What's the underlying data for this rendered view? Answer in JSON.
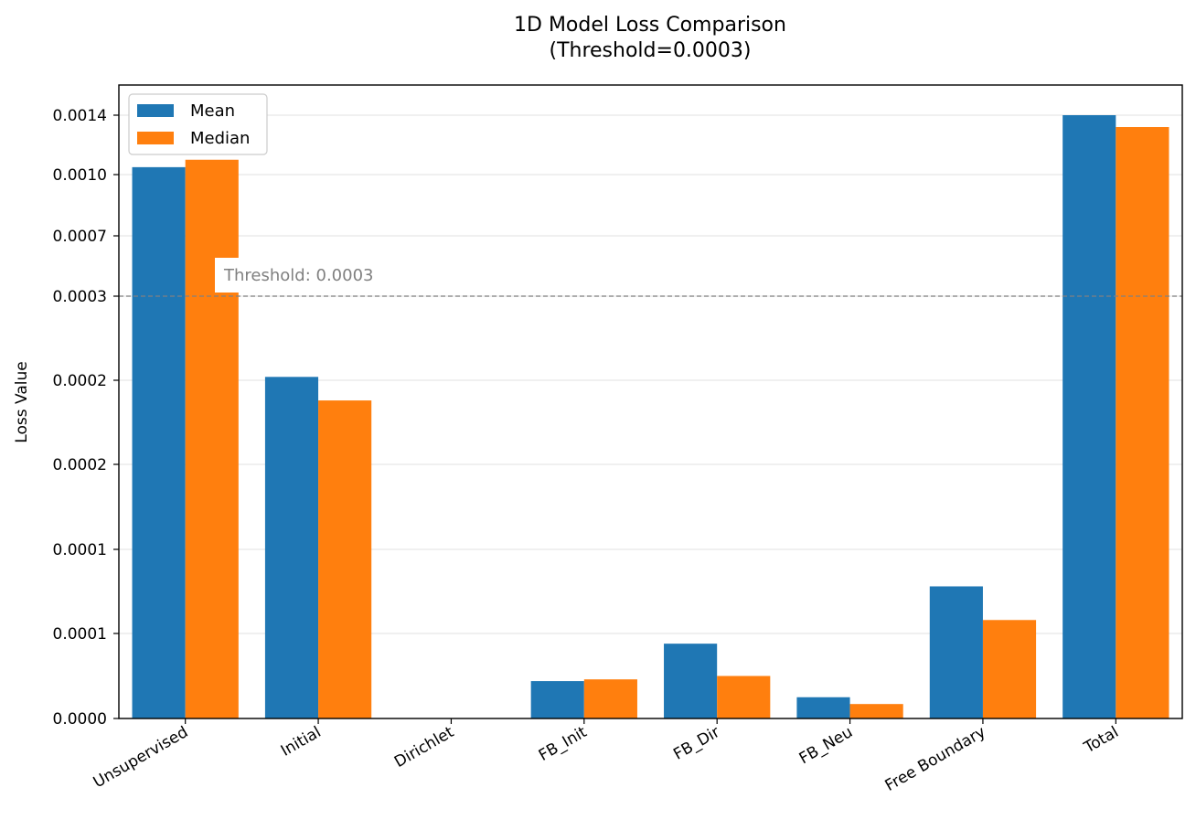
{
  "chart_data": {
    "type": "bar",
    "title": "1D Model Loss Comparison",
    "subtitle": "(Threshold=0.0003)",
    "xlabel": "",
    "ylabel": "Loss Value",
    "y_scale": "nonlinear (symlog-like; tick labels not evenly spaced)",
    "ylim": [
      0.0,
      0.00145
    ],
    "yticks": [
      {
        "value": 0.0,
        "label": "0.0000"
      },
      {
        "value": 5e-05,
        "label": "0.0001"
      },
      {
        "value": 0.0001,
        "label": "0.0001"
      },
      {
        "value": 0.00015,
        "label": "0.0002"
      },
      {
        "value": 0.0002,
        "label": "0.0002"
      },
      {
        "value": 0.0003,
        "label": "0.0003"
      },
      {
        "value": 0.0007,
        "label": "0.0007"
      },
      {
        "value": 0.001,
        "label": "0.0010"
      },
      {
        "value": 0.0014,
        "label": "0.0014"
      }
    ],
    "categories": [
      "Unsupervised",
      "Initial",
      "Dirichlet",
      "FB_Init",
      "FB_Dir",
      "FB_Neu",
      "Free Boundary",
      "Total"
    ],
    "series": [
      {
        "name": "Mean",
        "color": "#1f77b4",
        "values": [
          0.00105,
          0.000204,
          0.0,
          2.2e-05,
          4.4e-05,
          1.25e-05,
          7.8e-05,
          0.0014
        ]
      },
      {
        "name": "Median",
        "color": "#ff7f0e",
        "values": [
          0.0011,
          0.000188,
          0.0,
          2.3e-05,
          2.5e-05,
          8.5e-06,
          5.8e-05,
          0.00132
        ]
      }
    ],
    "threshold": {
      "value": 0.0003,
      "label": "Threshold: 0.0003",
      "color": "#808080"
    },
    "grid": "horizontal",
    "legend_position": "top-left"
  }
}
